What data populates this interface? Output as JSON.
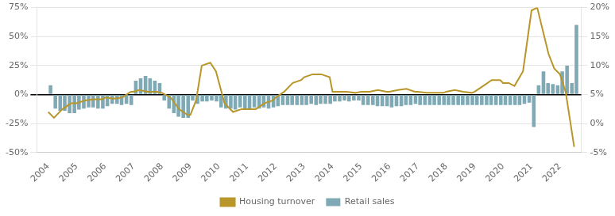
{
  "chart_data": {
    "type": "bar",
    "xlim": [
      2003.6,
      2022.75
    ],
    "xticks": [
      2004,
      2005,
      2006,
      2007,
      2008,
      2009,
      2010,
      2011,
      2012,
      2013,
      2014,
      2015,
      2016,
      2017,
      2018,
      2019,
      2020,
      2021,
      2022
    ],
    "ylim": [
      -50,
      75
    ],
    "yticks": [
      {
        "value": -50,
        "label": "-50%"
      },
      {
        "value": -25,
        "label": "-25%"
      },
      {
        "value": 0,
        "label": "0%"
      },
      {
        "value": 25,
        "label": "25%"
      },
      {
        "value": 50,
        "label": "50%"
      },
      {
        "value": 75,
        "label": "75%"
      }
    ],
    "y2lim": [
      -5,
      20
    ],
    "y2ticks": [
      {
        "value": -5,
        "label": "-5%"
      },
      {
        "value": 0,
        "label": "0%"
      },
      {
        "value": 5,
        "label": "5%"
      },
      {
        "value": 10,
        "label": "10%"
      },
      {
        "value": 15,
        "label": "15%"
      },
      {
        "value": 20,
        "label": "20%"
      }
    ],
    "grid": true,
    "legend": "bottom",
    "series": [
      {
        "name": "Retail sales",
        "type": "bar",
        "color": "#7faab5",
        "x": [
          2004.08,
          2004.25,
          2004.42,
          2004.58,
          2004.75,
          2004.92,
          2005.08,
          2005.25,
          2005.42,
          2005.58,
          2005.75,
          2005.92,
          2006.08,
          2006.25,
          2006.42,
          2006.58,
          2006.75,
          2006.92,
          2007.08,
          2007.25,
          2007.42,
          2007.58,
          2007.75,
          2007.92,
          2008.08,
          2008.25,
          2008.42,
          2008.58,
          2008.75,
          2008.92,
          2009.08,
          2009.25,
          2009.42,
          2009.58,
          2009.75,
          2009.92,
          2010.08,
          2010.25,
          2010.42,
          2010.58,
          2010.75,
          2010.92,
          2011.08,
          2011.25,
          2011.42,
          2011.58,
          2011.75,
          2011.92,
          2012.08,
          2012.25,
          2012.42,
          2012.58,
          2012.75,
          2012.92,
          2013.08,
          2013.25,
          2013.42,
          2013.58,
          2013.75,
          2013.92,
          2014.08,
          2014.25,
          2014.42,
          2014.58,
          2014.75,
          2014.92,
          2015.08,
          2015.25,
          2015.42,
          2015.58,
          2015.75,
          2015.92,
          2016.08,
          2016.25,
          2016.42,
          2016.58,
          2016.75,
          2016.92,
          2017.08,
          2017.25,
          2017.42,
          2017.58,
          2017.75,
          2017.92,
          2018.08,
          2018.25,
          2018.42,
          2018.58,
          2018.75,
          2018.92,
          2019.08,
          2019.25,
          2019.42,
          2019.58,
          2019.75,
          2019.92,
          2020.08,
          2020.25,
          2020.42,
          2020.58,
          2020.75,
          2020.92,
          2021.08,
          2021.25,
          2021.42,
          2021.58,
          2021.75,
          2021.92,
          2022.08,
          2022.25,
          2022.42,
          2022.58
        ],
        "values": [
          8,
          -12,
          -14,
          -14,
          -16,
          -16,
          -13,
          -12,
          -11,
          -11,
          -12,
          -12,
          -10,
          -8,
          -8,
          -9,
          -8,
          -9,
          12,
          14,
          16,
          14,
          12,
          10,
          -5,
          -12,
          -16,
          -19,
          -20,
          -20,
          -5,
          -8,
          -6,
          -6,
          -5,
          -6,
          -11,
          -12,
          -12,
          -13,
          -11,
          -12,
          -13,
          -11,
          -12,
          -11,
          -12,
          -11,
          -10,
          -9,
          -9,
          -9,
          -9,
          -9,
          -9,
          -8,
          -9,
          -8,
          -8,
          -8,
          -6,
          -6,
          -5,
          -6,
          -5,
          -5,
          -9,
          -9,
          -9,
          -10,
          -10,
          -10,
          -11,
          -10,
          -10,
          -9,
          -9,
          -8,
          -9,
          -9,
          -9,
          -9,
          -9,
          -9,
          -9,
          -9,
          -9,
          -9,
          -9,
          -9,
          -9,
          -9,
          -9,
          -9,
          -9,
          -9,
          -9,
          -9,
          -9,
          -9,
          -8,
          -7,
          -28,
          8,
          20,
          10,
          9,
          8,
          20,
          25,
          10,
          60
        ]
      },
      {
        "name": "Housing turnover",
        "type": "line",
        "color": "#b8962a",
        "axis": "y2",
        "x": [
          2004.0,
          2004.2,
          2004.5,
          2004.8,
          2005.0,
          2005.3,
          2005.6,
          2005.9,
          2006.0,
          2006.3,
          2006.6,
          2006.9,
          2007.0,
          2007.2,
          2007.5,
          2007.8,
          2008.0,
          2008.3,
          2008.6,
          2008.9,
          2009.0,
          2009.2,
          2009.4,
          2009.7,
          2009.9,
          2010.2,
          2010.5,
          2010.8,
          2011.0,
          2011.3,
          2011.6,
          2011.9,
          2012.0,
          2012.3,
          2012.6,
          2012.9,
          2013.0,
          2013.3,
          2013.6,
          2013.9,
          2014.0,
          2014.2,
          2014.5,
          2014.8,
          2015.0,
          2015.3,
          2015.6,
          2015.9,
          2016.0,
          2016.3,
          2016.6,
          2016.9,
          2017.0,
          2017.3,
          2017.6,
          2017.9,
          2018.0,
          2018.3,
          2018.6,
          2018.9,
          2019.0,
          2019.3,
          2019.6,
          2019.9,
          2020.0,
          2020.2,
          2020.4,
          2020.7,
          2021.0,
          2021.2,
          2021.4,
          2021.6,
          2021.8,
          2022.0,
          2022.2,
          2022.5
        ],
        "values": [
          2.0,
          1.0,
          2.5,
          3.5,
          3.5,
          4.0,
          4.2,
          4.2,
          4.5,
          4.3,
          4.5,
          5.5,
          5.5,
          5.8,
          5.5,
          5.5,
          5.3,
          4.5,
          2.5,
          1.5,
          1.5,
          4.0,
          10.0,
          10.5,
          9.0,
          3.5,
          2.0,
          2.5,
          2.5,
          2.5,
          3.5,
          4.0,
          4.5,
          5.5,
          7.0,
          7.5,
          8.0,
          8.5,
          8.5,
          8.0,
          5.5,
          5.5,
          5.5,
          5.3,
          5.5,
          5.5,
          5.8,
          5.5,
          5.5,
          5.8,
          6.0,
          5.5,
          5.5,
          5.3,
          5.3,
          5.3,
          5.5,
          5.8,
          5.5,
          5.3,
          5.5,
          6.5,
          7.5,
          7.5,
          7.0,
          7.0,
          6.5,
          9.0,
          19.5,
          20.0,
          16.0,
          12.0,
          9.5,
          8.5,
          5.5,
          -4.0
        ]
      }
    ]
  }
}
